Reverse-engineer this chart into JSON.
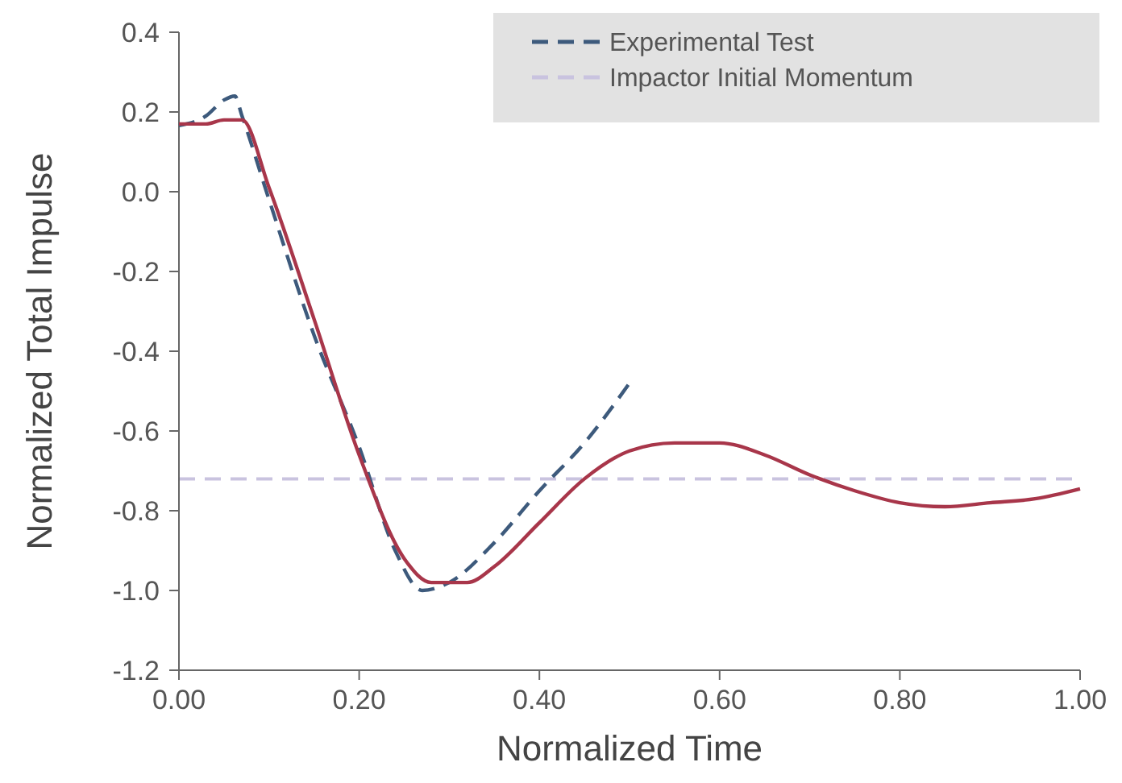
{
  "chart_data": {
    "type": "line",
    "xlabel": "Normalized Time",
    "ylabel": "Normalized Total Impulse",
    "xlim": [
      0,
      1
    ],
    "xticks": [
      {
        "value": 0,
        "label": "0.00"
      },
      {
        "value": 0.2,
        "label": "0.20"
      },
      {
        "value": 0.4,
        "label": "0.40"
      },
      {
        "value": 0.6,
        "label": "0.60"
      },
      {
        "value": 0.8,
        "label": "0.80"
      },
      {
        "value": 1,
        "label": "1.00"
      }
    ],
    "ylim": [
      -1.2,
      0.4
    ],
    "yticks": [
      {
        "value": -1.2,
        "label": "-1.2"
      },
      {
        "value": -1,
        "label": "-1.0"
      },
      {
        "value": -0.8,
        "label": "-0.8"
      },
      {
        "value": -0.6,
        "label": "-0.6"
      },
      {
        "value": -0.4,
        "label": "-0.4"
      },
      {
        "value": -0.2,
        "label": "-0.2"
      },
      {
        "value": 0,
        "label": "0.0"
      },
      {
        "value": 0.2,
        "label": "0.2"
      },
      {
        "value": 0.4,
        "label": "0.4"
      }
    ],
    "grid": false,
    "legend": "top right",
    "marker": "none",
    "series": [
      {
        "name": "Experimental Test",
        "color": "#3d5a7c",
        "line_style": "dashed",
        "x": [
          0,
          0.03,
          0.05,
          0.062,
          0.07,
          0.1,
          0.15,
          0.2,
          0.24,
          0.27,
          0.3,
          0.35,
          0.4,
          0.45,
          0.5
        ],
        "values": [
          0.166,
          0.19,
          0.23,
          0.24,
          0.19,
          -0.02,
          -0.36,
          -0.64,
          -0.9,
          -1.0,
          -0.98,
          -0.88,
          -0.75,
          -0.63,
          -0.48
        ]
      },
      {
        "color": "#a8364a",
        "line_style": "solid",
        "x": [
          0,
          0.03,
          0.05,
          0.07,
          0.1,
          0.15,
          0.2,
          0.25,
          0.28,
          0.32,
          0.35,
          0.4,
          0.45,
          0.5,
          0.55,
          0.6,
          0.65,
          0.7,
          0.75,
          0.8,
          0.85,
          0.9,
          0.95,
          1.0
        ],
        "values": [
          0.17,
          0.17,
          0.18,
          0.18,
          0.01,
          -0.32,
          -0.66,
          -0.92,
          -0.98,
          -0.98,
          -0.94,
          -0.83,
          -0.72,
          -0.65,
          -0.63,
          -0.63,
          -0.66,
          -0.71,
          -0.75,
          -0.78,
          -0.79,
          -0.78,
          -0.77,
          -0.745
        ]
      }
    ],
    "ref_lines": [
      {
        "axis": "y",
        "value": -0.72,
        "label": "Impactor Initial Momentum",
        "color": "#c9c3df",
        "line_style": "dashed"
      }
    ]
  }
}
